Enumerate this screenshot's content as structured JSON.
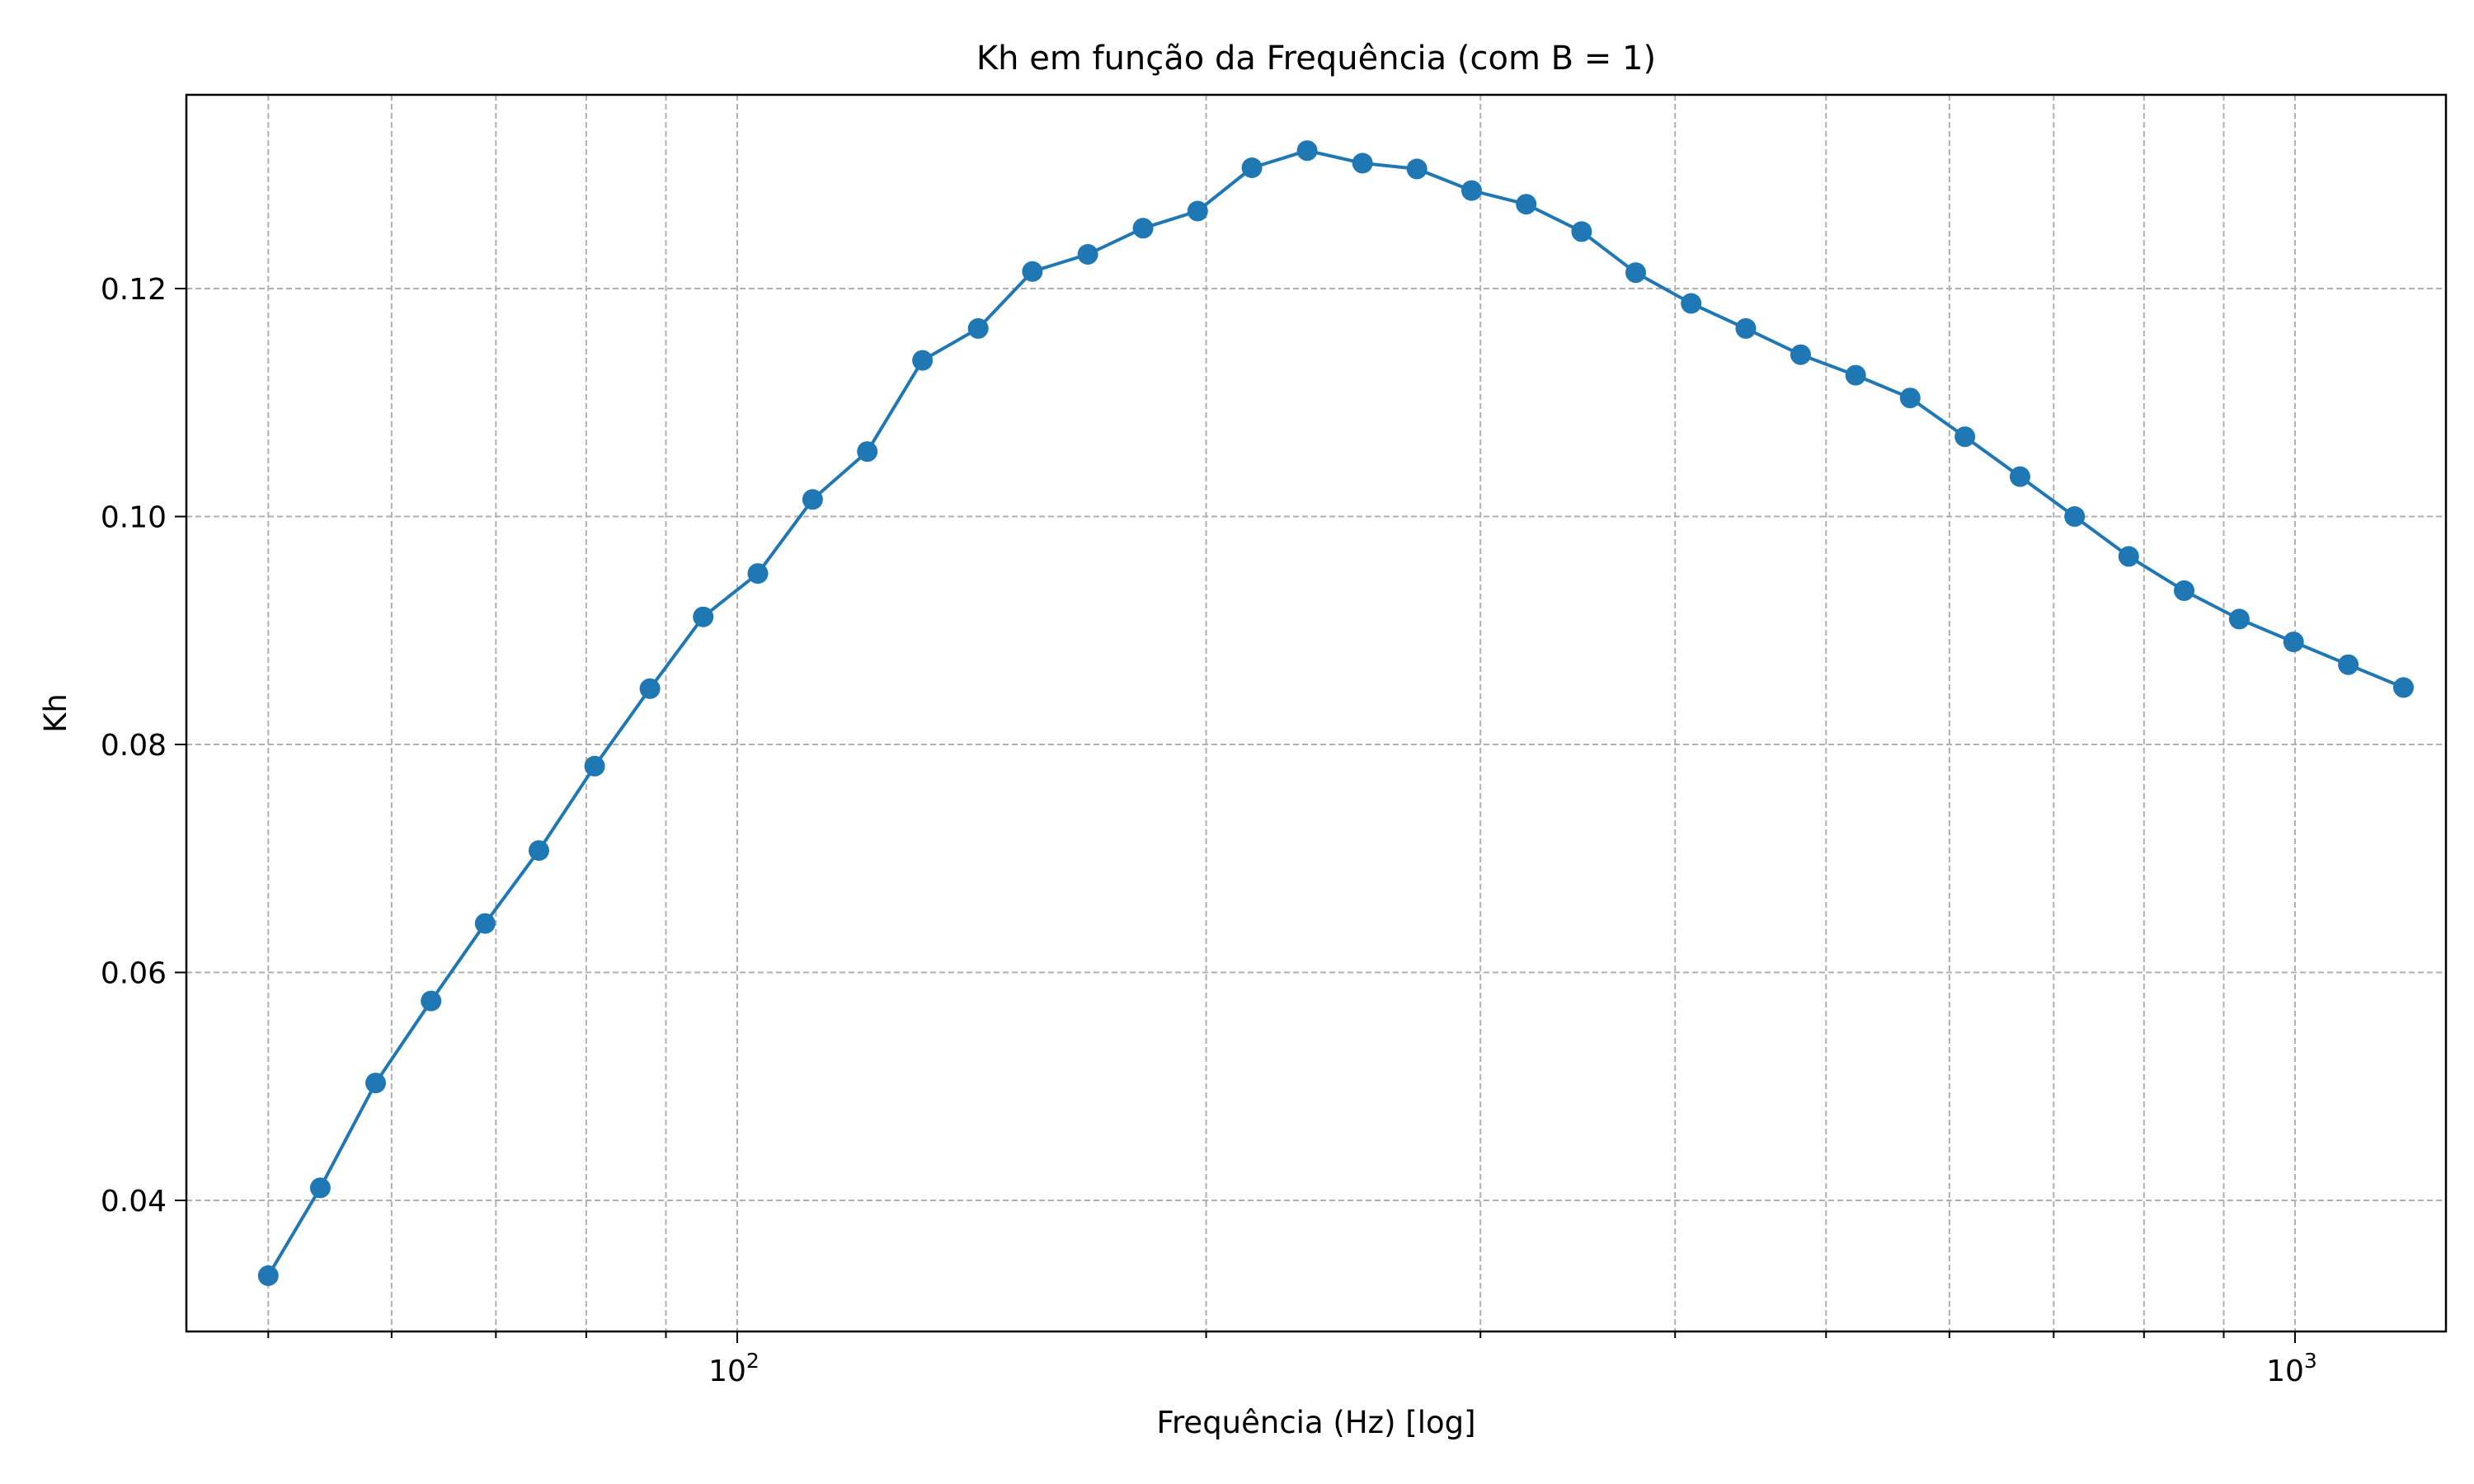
{
  "chart_data": {
    "type": "line",
    "title": "Kh em função da Frequência (com B = 1)",
    "xlabel": "Frequência (Hz) [log]",
    "ylabel": "Kh",
    "x_scale": "log",
    "xlim": [
      44.3,
      1250
    ],
    "ylim": [
      0.0285,
      0.137
    ],
    "grid": true,
    "grid_style": "dashed",
    "legend": "none",
    "x_major_ticks": [
      100,
      1000
    ],
    "x_major_labels": [
      {
        "base": "10",
        "exp": "2"
      },
      {
        "base": "10",
        "exp": "3"
      }
    ],
    "y_ticks": [
      0.04,
      0.06,
      0.08,
      0.1,
      0.12
    ],
    "y_tick_labels": [
      "0.04",
      "0.06",
      "0.08",
      "0.10",
      "0.12"
    ],
    "series": [
      {
        "color": "#1f77b4",
        "marker": "circle",
        "x": [
          50.0,
          54.0,
          58.6,
          63.6,
          68.9,
          74.6,
          81.0,
          87.9,
          95.1,
          103.1,
          111.8,
          121.2,
          131.5,
          142.8,
          154.7,
          167.9,
          182.2,
          197.5,
          214.0,
          232.2,
          252.0,
          273.1,
          296.1,
          321.0,
          348.4,
          377.4,
          409.6,
          444.1,
          481.6,
          522.4,
          566.2,
          613.9,
          666.0,
          722.0,
          782.1,
          848.8,
          921.0,
          997.9,
          1082.0,
          1174.0
        ],
        "y": [
          0.0334,
          0.0411,
          0.0503,
          0.0575,
          0.0643,
          0.0707,
          0.0781,
          0.0849,
          0.0912,
          0.095,
          0.1015,
          0.1057,
          0.1137,
          0.1165,
          0.1215,
          0.123,
          0.1253,
          0.1268,
          0.1306,
          0.1321,
          0.131,
          0.1305,
          0.1286,
          0.1274,
          0.125,
          0.1214,
          0.1187,
          0.1165,
          0.1142,
          0.1124,
          0.1104,
          0.107,
          0.1035,
          0.1,
          0.0965,
          0.0935,
          0.091,
          0.089,
          0.087,
          0.085
        ]
      }
    ]
  }
}
